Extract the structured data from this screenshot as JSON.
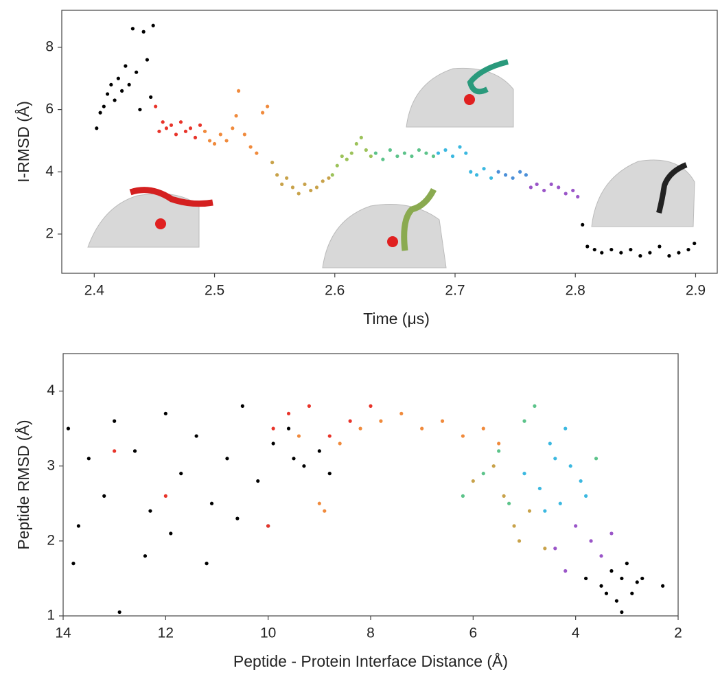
{
  "chart_data": [
    {
      "type": "scatter",
      "x_label": "Time (μs)",
      "y_label": "I-RMSD (Å)",
      "xlim": [
        2.373,
        2.918
      ],
      "ylim": [
        0.74,
        9.19
      ],
      "xticks": [
        2.4,
        2.5,
        2.6,
        2.7,
        2.8,
        2.9
      ],
      "yticks": [
        2,
        4,
        6,
        8
      ],
      "series": [
        {
          "color": "#000000",
          "x": [
            2.402,
            2.405,
            2.408,
            2.411,
            2.414,
            2.417,
            2.42,
            2.423,
            2.426,
            2.429,
            2.432,
            2.435,
            2.438,
            2.441,
            2.444,
            2.447,
            2.449
          ],
          "values": [
            5.4,
            5.9,
            6.1,
            6.5,
            6.8,
            6.3,
            7.0,
            6.6,
            7.4,
            6.8,
            8.6,
            7.2,
            6.0,
            8.5,
            7.6,
            6.4,
            8.7
          ]
        },
        {
          "color": "#e8342a",
          "x": [
            2.451,
            2.454,
            2.457,
            2.46,
            2.464,
            2.468,
            2.472,
            2.476,
            2.48,
            2.484,
            2.488
          ],
          "values": [
            6.1,
            5.3,
            5.6,
            5.4,
            5.5,
            5.2,
            5.6,
            5.3,
            5.4,
            5.1,
            5.5
          ]
        },
        {
          "color": "#f08a3c",
          "x": [
            2.492,
            2.496,
            2.5,
            2.505,
            2.51,
            2.515,
            2.518,
            2.52,
            2.525,
            2.53,
            2.535,
            2.54,
            2.544
          ],
          "values": [
            5.3,
            5.0,
            4.9,
            5.2,
            5.0,
            5.4,
            5.8,
            6.6,
            5.2,
            4.8,
            4.6,
            5.9,
            6.1
          ]
        },
        {
          "color": "#c8a24a",
          "x": [
            2.548,
            2.552,
            2.556,
            2.56,
            2.565,
            2.57,
            2.575,
            2.58,
            2.585,
            2.59,
            2.595
          ],
          "values": [
            4.3,
            3.9,
            3.6,
            3.8,
            3.5,
            3.3,
            3.6,
            3.4,
            3.5,
            3.7,
            3.8
          ]
        },
        {
          "color": "#9cc25a",
          "x": [
            2.598,
            2.602,
            2.606,
            2.61,
            2.614,
            2.618,
            2.622,
            2.626,
            2.63
          ],
          "values": [
            3.9,
            4.2,
            4.5,
            4.4,
            4.6,
            4.9,
            5.1,
            4.7,
            4.5
          ]
        },
        {
          "color": "#5cc38a",
          "x": [
            2.634,
            2.64,
            2.646,
            2.652,
            2.658,
            2.664,
            2.67,
            2.676,
            2.682
          ],
          "values": [
            4.6,
            4.4,
            4.7,
            4.5,
            4.6,
            4.5,
            4.7,
            4.6,
            4.5
          ]
        },
        {
          "color": "#3bb8e0",
          "x": [
            2.686,
            2.692,
            2.698,
            2.704,
            2.709,
            2.713,
            2.718,
            2.724,
            2.73
          ],
          "values": [
            4.6,
            4.7,
            4.5,
            4.8,
            4.6,
            4.0,
            3.9,
            4.1,
            3.8
          ]
        },
        {
          "color": "#4a8fd8",
          "x": [
            2.736,
            2.742,
            2.748,
            2.754,
            2.759
          ],
          "values": [
            4.0,
            3.9,
            3.8,
            4.0,
            3.9
          ]
        },
        {
          "color": "#9a55c8",
          "x": [
            2.763,
            2.768,
            2.774,
            2.78,
            2.786,
            2.792,
            2.798,
            2.802
          ],
          "values": [
            3.5,
            3.6,
            3.4,
            3.6,
            3.5,
            3.3,
            3.4,
            3.2
          ]
        },
        {
          "color": "#000000",
          "x": [
            2.806,
            2.81,
            2.816,
            2.822,
            2.83,
            2.838,
            2.846,
            2.854,
            2.862,
            2.87,
            2.878,
            2.886,
            2.894,
            2.899
          ],
          "values": [
            2.3,
            1.6,
            1.5,
            1.4,
            1.5,
            1.4,
            1.5,
            1.3,
            1.4,
            1.6,
            1.3,
            1.4,
            1.5,
            1.7
          ]
        }
      ]
    },
    {
      "type": "scatter",
      "x_label": "Peptide - Protein Interface Distance (Å)",
      "y_label": "Peptide RMSD (Å)",
      "xlim": [
        14,
        2
      ],
      "ylim": [
        1,
        4.5
      ],
      "xticks": [
        14,
        12,
        10,
        8,
        6,
        4,
        2
      ],
      "yticks": [
        1,
        2,
        3,
        4
      ],
      "series": [
        {
          "color": "#000000",
          "x": [
            13.9,
            13.7,
            13.5,
            13.2,
            12.9,
            12.6,
            12.3,
            12.0,
            11.7,
            11.4,
            11.1,
            10.8,
            10.5,
            10.2,
            9.9,
            9.6,
            9.3,
            9.0,
            8.8,
            13.8,
            13.0,
            12.4,
            11.9,
            11.2,
            10.6,
            10.0,
            9.5
          ],
          "values": [
            3.5,
            2.2,
            3.1,
            2.6,
            1.05,
            3.2,
            2.4,
            3.7,
            2.9,
            3.4,
            2.5,
            3.1,
            3.8,
            2.8,
            3.3,
            3.5,
            3.0,
            3.2,
            2.9,
            1.7,
            3.6,
            1.8,
            2.1,
            1.7,
            2.3,
            2.2,
            3.1
          ]
        },
        {
          "color": "#e8342a",
          "x": [
            13.0,
            12.0,
            10.0,
            9.6,
            9.2,
            8.8,
            8.4,
            8.0,
            9.9
          ],
          "values": [
            3.2,
            2.6,
            2.2,
            3.7,
            3.8,
            3.4,
            3.6,
            3.8,
            3.5
          ]
        },
        {
          "color": "#f08a3c",
          "x": [
            9.4,
            9.0,
            8.6,
            8.2,
            7.8,
            7.4,
            7.0,
            6.6,
            6.2,
            5.8,
            5.5,
            8.9
          ],
          "values": [
            3.4,
            2.5,
            3.3,
            3.5,
            3.6,
            3.7,
            3.5,
            3.6,
            3.4,
            3.5,
            3.3,
            2.4
          ]
        },
        {
          "color": "#c8a24a",
          "x": [
            6.0,
            5.6,
            5.4,
            5.2,
            4.9,
            4.6,
            5.1
          ],
          "values": [
            2.8,
            3.0,
            2.6,
            2.2,
            2.4,
            1.9,
            2.0
          ]
        },
        {
          "color": "#5cc38a",
          "x": [
            6.2,
            5.8,
            5.5,
            5.0,
            4.8,
            5.3,
            3.6
          ],
          "values": [
            2.6,
            2.9,
            3.2,
            3.6,
            3.8,
            2.5,
            3.1
          ]
        },
        {
          "color": "#3bb8e0",
          "x": [
            5.0,
            4.7,
            4.5,
            4.3,
            4.1,
            3.9,
            4.6,
            4.2,
            3.8,
            4.4
          ],
          "values": [
            2.9,
            2.7,
            3.3,
            2.5,
            3.0,
            2.8,
            2.4,
            3.5,
            2.6,
            3.1
          ]
        },
        {
          "color": "#9a55c8",
          "x": [
            4.4,
            4.0,
            3.7,
            3.5,
            3.3,
            4.2
          ],
          "values": [
            1.9,
            2.2,
            2.0,
            1.8,
            2.1,
            1.6
          ]
        },
        {
          "color": "#000000",
          "x": [
            3.8,
            3.5,
            3.3,
            3.1,
            2.9,
            2.7,
            3.2,
            3.0,
            2.8,
            2.3,
            3.4,
            3.1
          ],
          "values": [
            1.5,
            1.4,
            1.6,
            1.5,
            1.3,
            1.5,
            1.2,
            1.7,
            1.45,
            1.4,
            1.3,
            1.05
          ]
        }
      ]
    }
  ]
}
